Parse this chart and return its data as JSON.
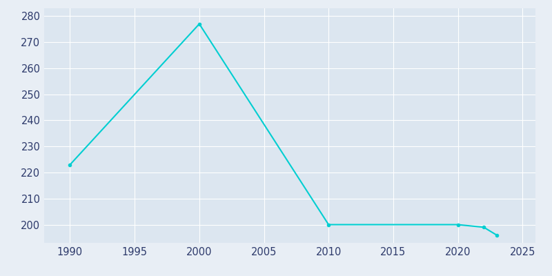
{
  "years": [
    1990,
    2000,
    2010,
    2020,
    2022,
    2023
  ],
  "population": [
    223,
    277,
    200,
    200,
    199,
    196
  ],
  "line_color": "#00CED1",
  "plot_bg_color": "#dce6f0",
  "fig_bg_color": "#e8eef5",
  "grid_color": "#ffffff",
  "xlabel": "",
  "ylabel": "",
  "xlim": [
    1988,
    2026
  ],
  "ylim": [
    193,
    283
  ],
  "yticks": [
    200,
    210,
    220,
    230,
    240,
    250,
    260,
    270,
    280
  ],
  "xticks": [
    1990,
    1995,
    2000,
    2005,
    2010,
    2015,
    2020,
    2025
  ],
  "linewidth": 1.5,
  "marker": "o",
  "markersize": 3,
  "tick_color": "#2d3a6b",
  "tick_fontsize": 10.5
}
